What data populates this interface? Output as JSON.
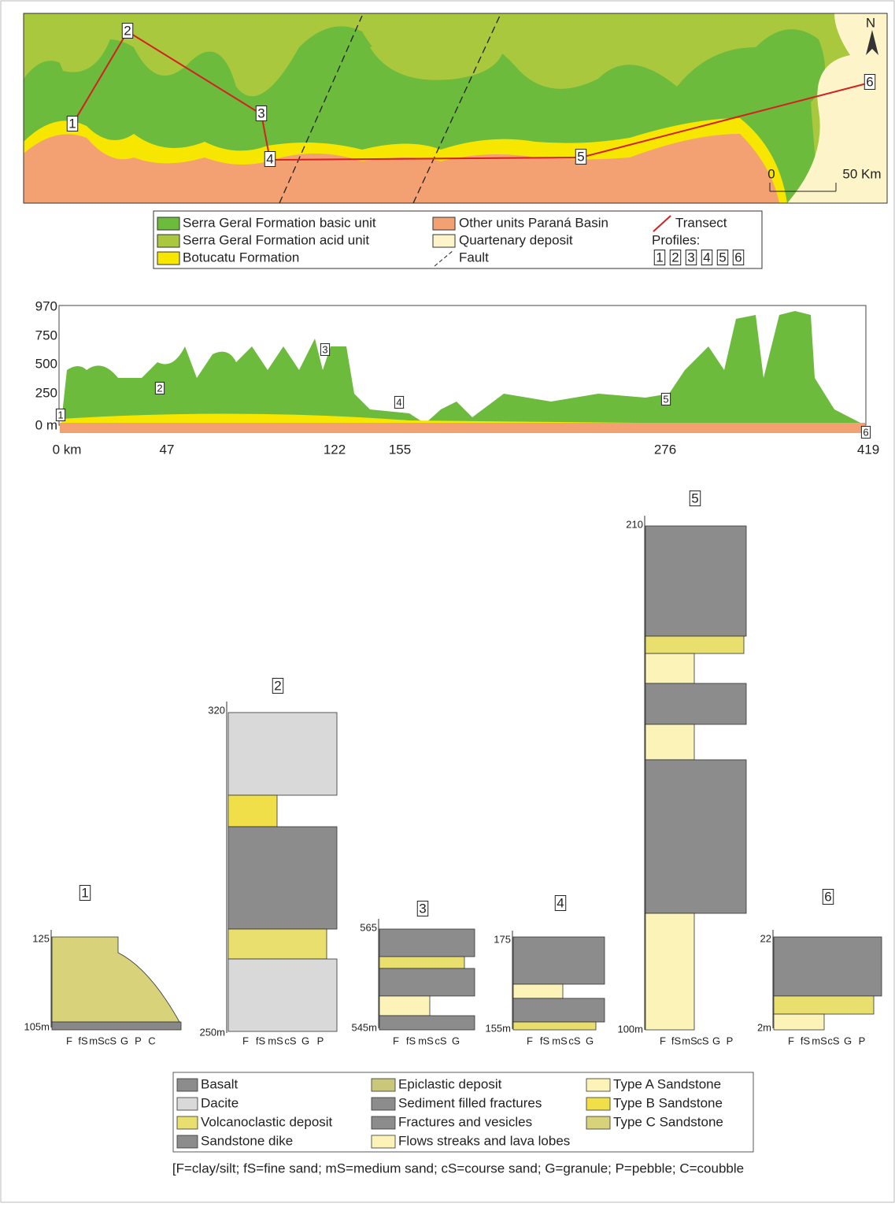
{
  "map": {
    "north": "N",
    "scale": [
      "0",
      "50 Km"
    ],
    "points": [
      "1",
      "2",
      "3",
      "4",
      "5",
      "6"
    ]
  },
  "map_legend": {
    "items": [
      "Serra Geral Formation basic unit",
      "Serra Geral Formation acid unit",
      "Botucatu Formation",
      "Other units Paraná Basin",
      "Quartenary deposit",
      "Fault",
      "Transect"
    ],
    "profiles_label": "Profiles:",
    "profiles": [
      "1",
      "2",
      "3",
      "4",
      "5",
      "6"
    ]
  },
  "profile": {
    "y_labels": [
      "970",
      "750",
      "500",
      "250",
      "0 m"
    ],
    "x_labels": [
      "0 km",
      "47",
      "122",
      "155",
      "276",
      "419"
    ],
    "points": [
      "1",
      "2",
      "3",
      "4",
      "5",
      "6"
    ]
  },
  "columns": [
    {
      "id": "1",
      "top": "125",
      "bottom": "105m",
      "grain": [
        "F",
        "fS",
        "mS",
        "cS",
        "G",
        "P",
        "C"
      ]
    },
    {
      "id": "2",
      "top": "320",
      "bottom": "250m",
      "grain": [
        "F",
        "fS",
        "mS",
        "cS",
        "G",
        "P"
      ]
    },
    {
      "id": "3",
      "top": "565",
      "bottom": "545m",
      "grain": [
        "F",
        "fS",
        "mS",
        "cS",
        "G"
      ]
    },
    {
      "id": "4",
      "top": "175",
      "bottom": "155m",
      "grain": [
        "F",
        "fS",
        "mS",
        "cS",
        "G"
      ]
    },
    {
      "id": "5",
      "top": "210",
      "bottom": "100m",
      "grain": [
        "F",
        "fS",
        "mS",
        "cS",
        "G",
        "P"
      ]
    },
    {
      "id": "6",
      "top": "22",
      "bottom": "2m",
      "grain": [
        "F",
        "fS",
        "mS",
        "cS",
        "G",
        "P"
      ]
    }
  ],
  "lithology_legend": {
    "items": [
      "Basalt",
      "Dacite",
      "Volcanoclastic deposit",
      "Sandstone dike",
      "Epiclastic deposit",
      "Sediment filled fractures",
      "Fractures and vesicles",
      "Flows streaks and lava lobes",
      "Type A Sandstone",
      "Type B Sandstone",
      "Type C Sandstone"
    ]
  },
  "footnote": "[F=clay/silt; fS=fine sand; mS=medium sand; cS=course sand; G=granule; P=pebble; C=coubble"
}
